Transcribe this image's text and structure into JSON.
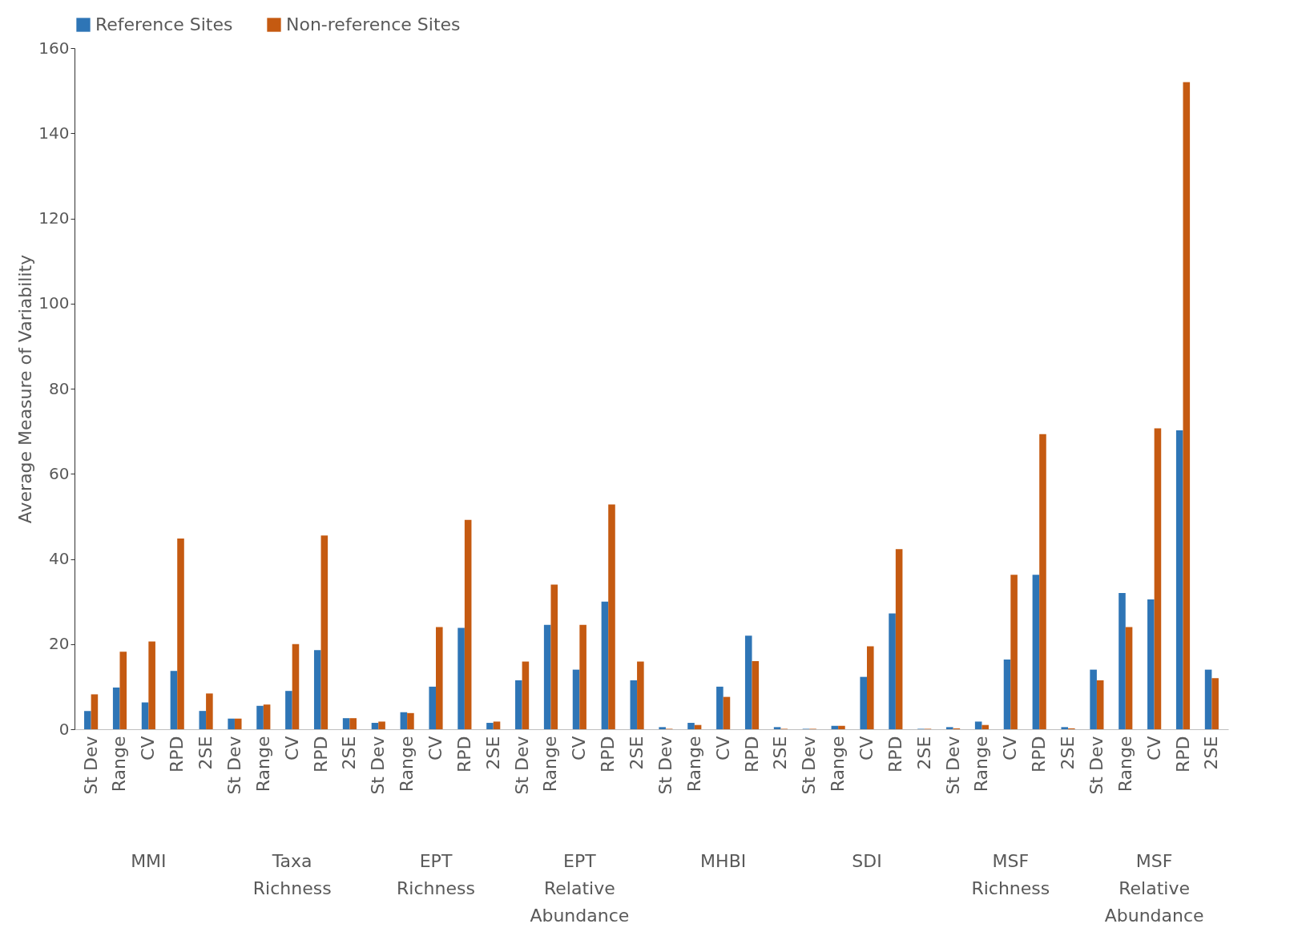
{
  "chart_data": {
    "type": "bar",
    "ylabel": "Average Measure of Variability",
    "categories": [
      "St Dev",
      "Range",
      "CV",
      "RPD",
      "2SE",
      "St Dev",
      "Range",
      "CV",
      "RPD",
      "2SE",
      "St Dev",
      "Range",
      "CV",
      "RPD",
      "2SE",
      "St Dev",
      "Range",
      "CV",
      "RPD",
      "2SE",
      "St Dev",
      "Range",
      "CV",
      "RPD",
      "2SE",
      "St Dev",
      "Range",
      "CV",
      "RPD",
      "2SE",
      "St Dev",
      "Range",
      "CV",
      "RPD",
      "2SE",
      "St Dev",
      "Range",
      "CV",
      "RPD",
      "2SE"
    ],
    "annotations": [
      "MMI",
      "Taxa Richness",
      "EPT Richness",
      "EPT Relative Abundance",
      "MHBI",
      "SDI",
      "MSF Richness",
      "MSF Relative Abundance"
    ],
    "series": [
      {
        "name": "Reference Sites",
        "color": "#2e75b6",
        "values": [
          4.3,
          9.8,
          6.3,
          13.7,
          4.3,
          2.5,
          5.5,
          9,
          18.6,
          2.6,
          1.5,
          4,
          10,
          23.8,
          1.5,
          11.5,
          24.5,
          14,
          30,
          11.5,
          0.5,
          1.5,
          10,
          22,
          0.5,
          0.1,
          0.8,
          12.3,
          27.2,
          0.1,
          0.5,
          1.8,
          16.4,
          36.3,
          0.5,
          14,
          32,
          30.5,
          70.2,
          14
        ]
      },
      {
        "name": "Non-reference Sites",
        "color": "#c55a11",
        "values": [
          8.2,
          18.2,
          20.6,
          44.8,
          8.4,
          2.5,
          5.8,
          20,
          45.5,
          2.6,
          1.8,
          3.8,
          24,
          49.2,
          1.8,
          15.9,
          34,
          24.5,
          52.8,
          15.9,
          0.1,
          1,
          7.6,
          16,
          0.1,
          0.1,
          0.8,
          19.5,
          42.3,
          0.1,
          0.2,
          1,
          36.3,
          69.3,
          0.2,
          11.5,
          24,
          70.7,
          152,
          12
        ]
      }
    ],
    "ylim": [
      0,
      160
    ],
    "yticks": [
      0,
      20,
      40,
      60,
      80,
      100,
      120,
      140,
      160
    ],
    "grid": false,
    "legend": "top"
  }
}
